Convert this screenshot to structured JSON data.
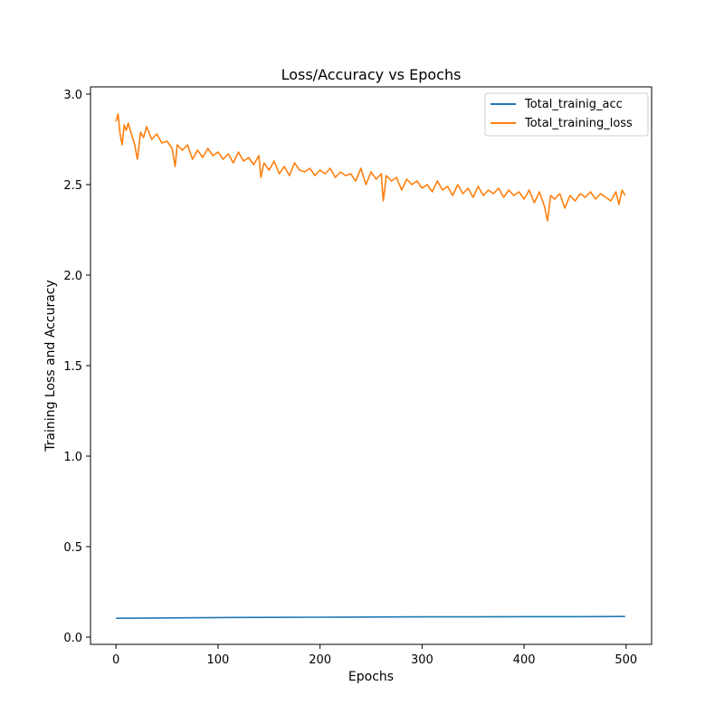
{
  "chart_data": {
    "type": "line",
    "title": "Loss/Accuracy vs Epochs",
    "xlabel": "Epochs",
    "ylabel": "Training Loss and Accuracy",
    "xlim": [
      -25,
      525
    ],
    "ylim": [
      -0.04,
      3.04
    ],
    "xticks": [
      0,
      100,
      200,
      300,
      400,
      500
    ],
    "yticks": [
      0.0,
      0.5,
      1.0,
      1.5,
      2.0,
      2.5,
      3.0
    ],
    "xtick_labels": [
      "0",
      "100",
      "200",
      "300",
      "400",
      "500"
    ],
    "ytick_labels": [
      "0.0",
      "0.5",
      "1.0",
      "1.5",
      "2.0",
      "2.5",
      "3.0"
    ],
    "grid": false,
    "legend_position": "top-right",
    "series": [
      {
        "name": "Total_trainig_acc",
        "color": "#1f77b4",
        "x": [
          0,
          50,
          100,
          150,
          200,
          250,
          300,
          350,
          400,
          450,
          499
        ],
        "values": [
          0.104,
          0.106,
          0.108,
          0.109,
          0.11,
          0.111,
          0.112,
          0.112,
          0.113,
          0.113,
          0.114
        ]
      },
      {
        "name": "Total_training_loss",
        "color": "#ff7f0e",
        "x": [
          0,
          2,
          4,
          6,
          8,
          10,
          12,
          15,
          18,
          21,
          24,
          27,
          30,
          35,
          40,
          45,
          50,
          55,
          58,
          60,
          65,
          70,
          75,
          80,
          85,
          90,
          95,
          100,
          105,
          110,
          115,
          120,
          125,
          130,
          135,
          140,
          142,
          145,
          150,
          155,
          160,
          165,
          170,
          175,
          180,
          185,
          190,
          195,
          200,
          205,
          210,
          215,
          220,
          225,
          230,
          235,
          240,
          245,
          250,
          255,
          260,
          262,
          265,
          270,
          275,
          280,
          285,
          290,
          295,
          300,
          305,
          310,
          315,
          320,
          325,
          330,
          335,
          340,
          345,
          350,
          355,
          360,
          365,
          370,
          375,
          380,
          385,
          390,
          395,
          400,
          405,
          410,
          415,
          420,
          423,
          426,
          430,
          435,
          440,
          445,
          450,
          455,
          460,
          465,
          470,
          475,
          480,
          485,
          490,
          493,
          496,
          499
        ],
        "values": [
          2.85,
          2.89,
          2.78,
          2.72,
          2.83,
          2.8,
          2.84,
          2.78,
          2.73,
          2.64,
          2.79,
          2.76,
          2.82,
          2.75,
          2.78,
          2.73,
          2.74,
          2.7,
          2.6,
          2.72,
          2.69,
          2.72,
          2.64,
          2.69,
          2.65,
          2.7,
          2.66,
          2.68,
          2.64,
          2.67,
          2.62,
          2.68,
          2.63,
          2.65,
          2.61,
          2.66,
          2.54,
          2.62,
          2.58,
          2.63,
          2.56,
          2.6,
          2.55,
          2.62,
          2.58,
          2.57,
          2.59,
          2.55,
          2.58,
          2.56,
          2.59,
          2.54,
          2.57,
          2.55,
          2.56,
          2.52,
          2.59,
          2.5,
          2.57,
          2.53,
          2.56,
          2.41,
          2.55,
          2.52,
          2.54,
          2.47,
          2.53,
          2.5,
          2.52,
          2.48,
          2.5,
          2.46,
          2.52,
          2.47,
          2.49,
          2.44,
          2.5,
          2.45,
          2.48,
          2.43,
          2.49,
          2.44,
          2.47,
          2.45,
          2.48,
          2.43,
          2.47,
          2.44,
          2.46,
          2.42,
          2.47,
          2.4,
          2.46,
          2.38,
          2.3,
          2.44,
          2.42,
          2.45,
          2.37,
          2.44,
          2.41,
          2.45,
          2.43,
          2.46,
          2.42,
          2.45,
          2.43,
          2.41,
          2.46,
          2.39,
          2.47,
          2.44
        ]
      }
    ]
  }
}
